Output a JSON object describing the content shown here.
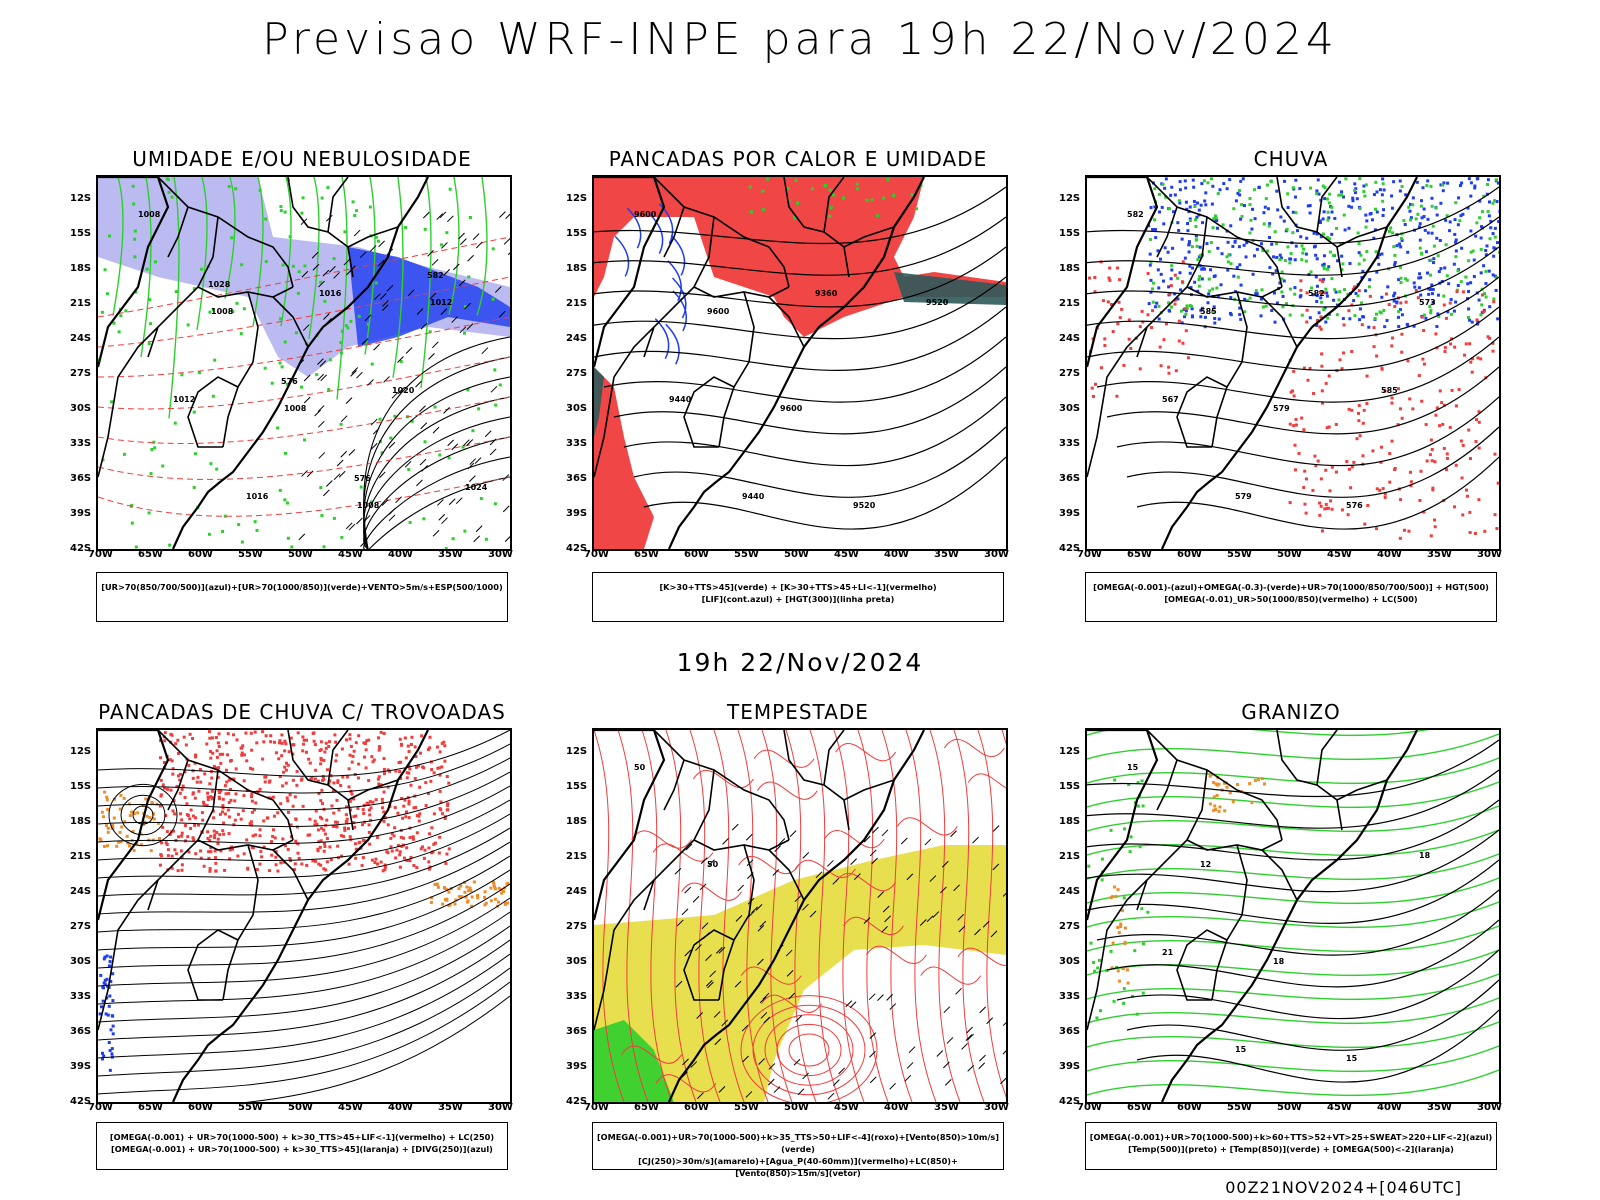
{
  "main_title": "Previsao WRF-INPE  para 19h 22/Nov/2024",
  "mid_title": "19h 22/Nov/2024",
  "footer": "00Z21NOV2024+[046UTC]",
  "axes": {
    "lat_labels": [
      "12S",
      "15S",
      "18S",
      "21S",
      "24S",
      "27S",
      "30S",
      "33S",
      "36S",
      "39S",
      "42S"
    ],
    "lon_labels": [
      "70W",
      "65W",
      "60W",
      "55W",
      "50W",
      "45W",
      "40W",
      "35W",
      "30W"
    ]
  },
  "panels": [
    {
      "title": "UMIDADE E/OU NEBULOSIDADE",
      "legend": [
        "[UR>70(850/700/500)](azul)+[UR>70(1000/850)](verde)+VENTO>5m/s+ESP(500/1000)"
      ],
      "labels": [
        "1008",
        "1008",
        "1008",
        "1008",
        "1012",
        "1012",
        "1016",
        "1016",
        "1020",
        "1024",
        "1028",
        "576",
        "576",
        "582"
      ]
    },
    {
      "title": "PANCADAS POR CALOR E UMIDADE",
      "legend": [
        "[K>30+TTS>45](verde) + [K>30+TTS>45+LI<-1](vermelho)",
        "[LIF](cont.azul) + [HGT(300)](linha preta)"
      ],
      "labels": [
        "9600",
        "9600",
        "9600",
        "9520",
        "9520",
        "9440",
        "9440",
        "9360"
      ]
    },
    {
      "title": "CHUVA",
      "legend": [
        "[OMEGA(-0.001)-(azul)+OMEGA(-0.3)-(verde)+UR>70(1000/850/700/500)] + HGT(500)",
        "[OMEGA(-0.01)_UR>50(1000/850)(vermelho) + LC(500)"
      ],
      "labels": [
        "582",
        "585",
        "579",
        "576",
        "573",
        "567",
        "579",
        "582",
        "585"
      ]
    },
    {
      "title": "PANCADAS DE CHUVA C/ TROVOADAS",
      "legend": [
        "[OMEGA(-0.001) + UR>70(1000-500) + k>30_TTS>45+LIF<-1](vermelho) + LC(250)",
        "[OMEGA(-0.001) + UR>70(1000-500) + k>30_TTS>45](laranja) + [DIVG(250)](azul)"
      ],
      "labels": []
    },
    {
      "title": "TEMPESTADE",
      "legend": [
        "[OMEGA(-0.001)+UR>70(1000-500)+k>35_TTS>50+LIF<-4](roxo)+[Vento(850)>10m/s](verde)",
        "[CJ(250)>30m/s](amarelo)+[Agua_P(40-60mm)](vermelho)+LC(850)+[Vento(850)>15m/s](vetor)"
      ],
      "labels": [
        "50",
        "50"
      ]
    },
    {
      "title": "GRANIZO",
      "legend": [
        "[OMEGA(-0.001)+UR>70(1000-500)+k>60+TTS>52+VT>25+SWEAT>220+LIF<-2](azul)",
        "[Temp(500)](preto) + [Temp(850)](verde) + [OMEGA(500)<-2](laranja)"
      ],
      "labels": [
        "15",
        "12",
        "18",
        "15",
        "18",
        "21",
        "15"
      ]
    }
  ],
  "colors": {
    "red": "#f03c3c",
    "green": "#2dcf2d",
    "blue": "#1e3cf0",
    "lavender": "#b4b4f0",
    "yellow": "#e6dc3c",
    "teal": "#2f5a5a",
    "orange": "#f08c28"
  }
}
